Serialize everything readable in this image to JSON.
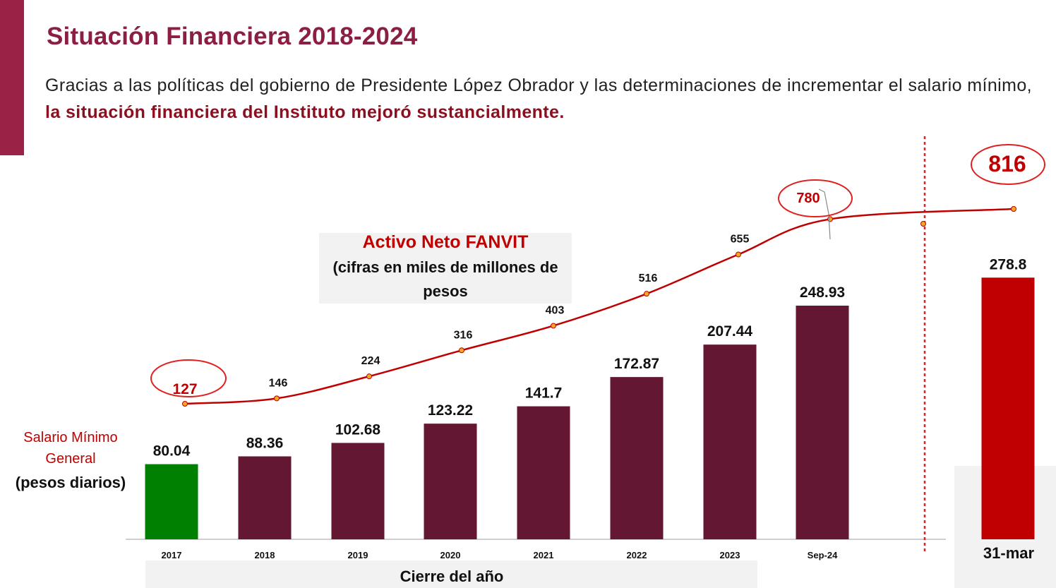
{
  "header": {
    "title": "Situación Financiera 2018-2024",
    "subtitle_plain": "Gracias a las políticas del gobierno de Presidente López Obrador y las determinaciones de incrementar el salario mínimo,",
    "subtitle_highlight": "la situación financiera del Instituto mejoró sustancialmente."
  },
  "chart_data": {
    "type": "bar",
    "categories": [
      "2017",
      "2018",
      "2019",
      "2020",
      "2021",
      "2022",
      "2023",
      "Sep-24"
    ],
    "xlabel": "Cierre del año",
    "bar_series": {
      "label_lines": [
        "Salario Mínimo",
        "General",
        "(pesos diarios)"
      ],
      "values": [
        80.04,
        88.36,
        102.68,
        123.22,
        141.7,
        172.87,
        207.44,
        248.93
      ],
      "value_labels": [
        "80.04",
        "88.36",
        "102.68",
        "123.22",
        "141.7",
        "172.87",
        "207.44",
        "248.93"
      ],
      "colors": [
        "#008000",
        "#631733",
        "#631733",
        "#631733",
        "#631733",
        "#631733",
        "#631733",
        "#631733"
      ]
    },
    "line_series": {
      "label_lines": [
        "Activo Neto FANVIT",
        "(cifras en miles de millones de",
        "pesos"
      ],
      "values": [
        127,
        146,
        224,
        316,
        403,
        516,
        655,
        780,
        816
      ],
      "value_labels": [
        "127",
        "146",
        "224",
        "316",
        "403",
        "516",
        "655",
        "780",
        "816"
      ],
      "color": "#c00000",
      "highlighted": [
        "127",
        "780",
        "816"
      ]
    },
    "projection": {
      "category": "31-mar",
      "bar_value": 278.8,
      "bar_label": "278.8",
      "line_value": 816,
      "color": "#c00000"
    },
    "grid": false,
    "legend": "none"
  }
}
